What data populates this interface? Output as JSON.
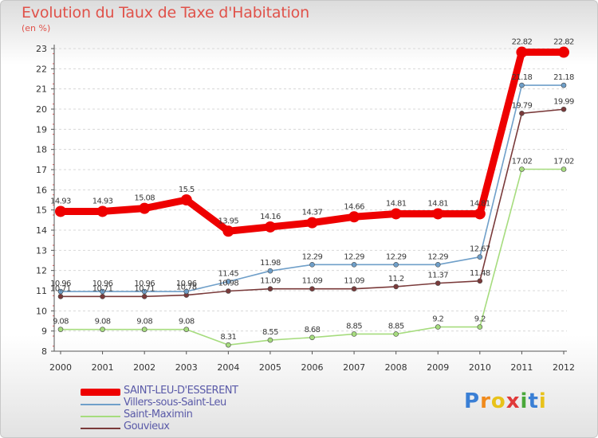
{
  "header": {
    "title": "Evolution du Taux de Taxe d'Habitation",
    "unit": "(en %)"
  },
  "brand": {
    "letters": [
      "P",
      "r",
      "o",
      "x",
      "i",
      "t",
      "i"
    ],
    "colors": [
      "#3a7fd5",
      "#f08a1c",
      "#e8c21a",
      "#e03a3a",
      "#4aa83a",
      "#3a7fd5",
      "#e8c21a"
    ]
  },
  "chart_data": {
    "type": "line",
    "title": "Evolution du Taux de Taxe d'Habitation",
    "ylabel": "(en %)",
    "xlabel": "",
    "x": [
      "2000",
      "2001",
      "2002",
      "2003",
      "2004",
      "2005",
      "2006",
      "2007",
      "2008",
      "2009",
      "2010",
      "2011",
      "2012"
    ],
    "ylim": [
      8,
      23
    ],
    "yticks": [
      8,
      9,
      10,
      11,
      12,
      13,
      14,
      15,
      16,
      17,
      18,
      19,
      20,
      21,
      22,
      23
    ],
    "grid": "horizontal",
    "legend": "bottom-left",
    "series": [
      {
        "name": "SAINT-LEU-D'ESSERENT",
        "color": "#ee0000",
        "values": [
          14.93,
          14.93,
          15.08,
          15.5,
          13.95,
          14.16,
          14.37,
          14.66,
          14.81,
          14.81,
          14.81,
          22.82,
          22.82
        ],
        "labels": [
          "14.93",
          "14.93",
          "15.08",
          "15.5",
          "13.95",
          "14.16",
          "14.37",
          "14.66",
          "14.81",
          "14.81",
          "14.81",
          "22.82",
          "22.82"
        ]
      },
      {
        "name": "Villers-sous-Saint-Leu",
        "color": "#6f9fc9",
        "values": [
          10.96,
          10.96,
          10.96,
          10.96,
          11.45,
          11.98,
          12.29,
          12.29,
          12.29,
          12.29,
          12.67,
          21.18,
          21.18
        ],
        "labels": [
          "10.96",
          "10.96",
          "10.96",
          "10.96",
          "11.45",
          "11.98",
          "12.29",
          "12.29",
          "12.29",
          "12.29",
          "12.67",
          "21.18",
          "21.18"
        ]
      },
      {
        "name": "Saint-Maximin",
        "color": "#a6dc7e",
        "values": [
          9.08,
          9.08,
          9.08,
          9.08,
          8.31,
          8.55,
          8.68,
          8.85,
          8.85,
          9.2,
          9.2,
          17.02,
          17.02
        ],
        "labels": [
          "9.08",
          "9.08",
          "9.08",
          "9.08",
          "8.31",
          "8.55",
          "8.68",
          "8.85",
          "8.85",
          "9.2",
          "9.2",
          "17.02",
          "17.02"
        ]
      },
      {
        "name": "Gouvieux",
        "color": "#7a3a3a",
        "values": [
          10.71,
          10.71,
          10.71,
          10.78,
          10.98,
          11.09,
          11.09,
          11.09,
          11.2,
          11.37,
          11.48,
          19.79,
          19.99
        ],
        "labels": [
          "10.71",
          "10.71",
          "10.71",
          "10.78",
          "10.98",
          "11.09",
          "11.09",
          "11.09",
          "11.2",
          "11.37",
          "11.48",
          "19.79",
          "19.99"
        ]
      }
    ]
  }
}
